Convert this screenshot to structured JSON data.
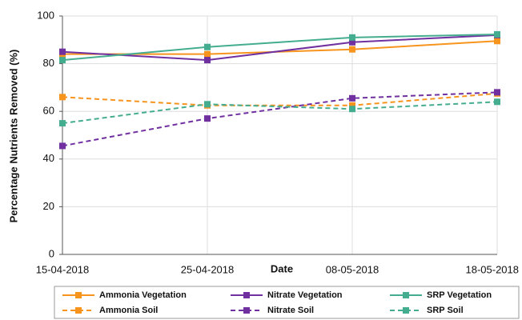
{
  "chart_data": {
    "type": "line",
    "x_label": "Date",
    "y_label": "Percentage Nutrients Removed (%)",
    "categories": [
      "15-04-2018",
      "25-04-2018",
      "08-05-2018",
      "18-05-2018"
    ],
    "ylim": [
      0,
      100
    ],
    "yticks": [
      0,
      20,
      40,
      60,
      80,
      100
    ],
    "grid": true,
    "series": [
      {
        "name": "Ammonia Vegetation",
        "color": "#f7941d",
        "dashed": false,
        "values": [
          84,
          84,
          86,
          89.5
        ]
      },
      {
        "name": "Nitrate Vegetation",
        "color": "#7030a0",
        "dashed": false,
        "values": [
          85,
          81.5,
          89,
          92
        ]
      },
      {
        "name": "SRP Vegetation",
        "color": "#45ad8f",
        "dashed": false,
        "values": [
          81.5,
          87,
          91,
          92.3
        ]
      },
      {
        "name": "Ammonia Soil",
        "color": "#f7941d",
        "dashed": true,
        "values": [
          66,
          62.5,
          62.5,
          67.5
        ]
      },
      {
        "name": "Nitrate Soil",
        "color": "#7030a0",
        "dashed": true,
        "values": [
          45.5,
          57,
          65.5,
          68
        ]
      },
      {
        "name": "SRP Soil",
        "color": "#45ad8f",
        "dashed": true,
        "values": [
          55,
          63,
          61,
          64
        ]
      }
    ]
  }
}
